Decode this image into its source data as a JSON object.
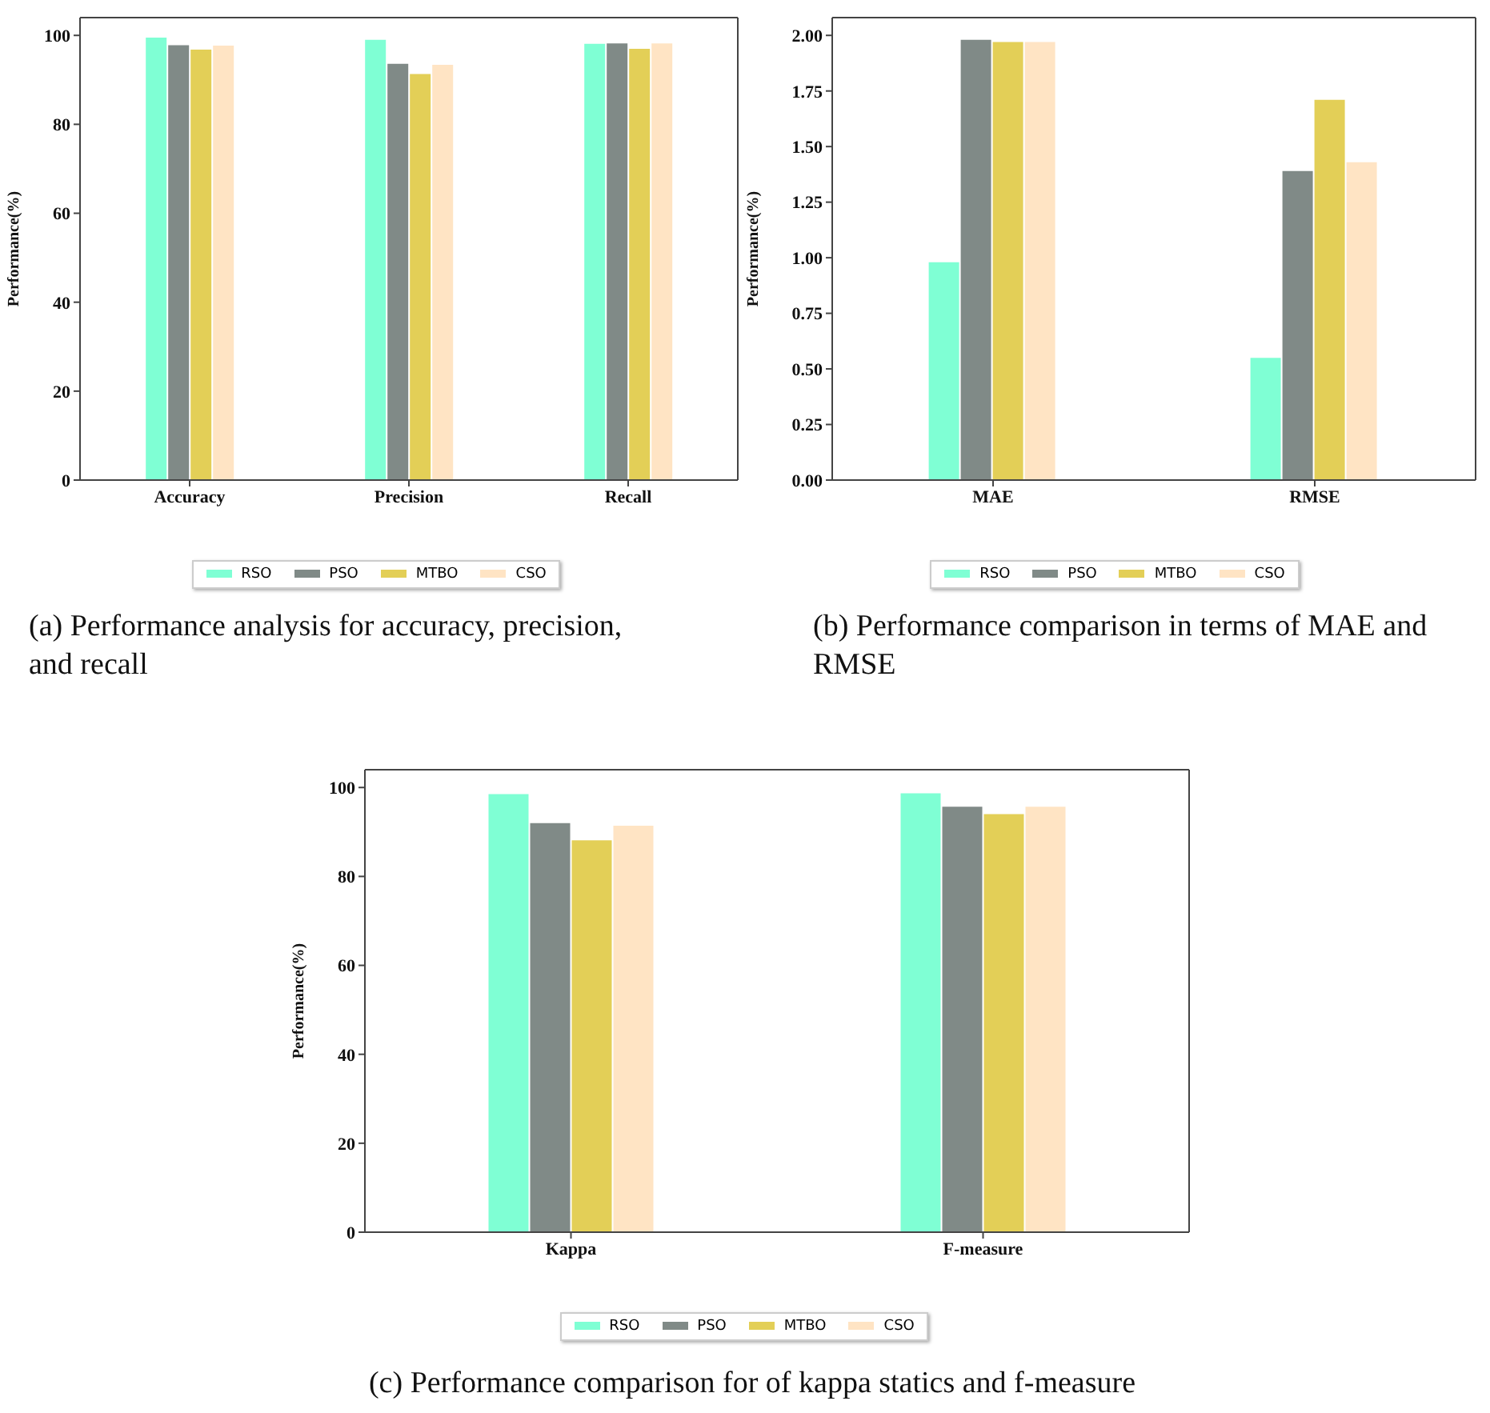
{
  "chart_data": [
    {
      "type": "bar",
      "categories": [
        "Accuracy",
        "Precision",
        "Recall"
      ],
      "ylabel": "Performance(%)",
      "ylim": [
        0,
        104
      ],
      "yticks": [
        0,
        20,
        40,
        60,
        80,
        100
      ],
      "legend": "bottom",
      "grid": false,
      "series": [
        {
          "name": "RSO",
          "color": "#7fffd4",
          "values": [
            99.5,
            99.0,
            98.1
          ]
        },
        {
          "name": "PSO",
          "color": "#808a87",
          "values": [
            97.8,
            93.6,
            98.2
          ]
        },
        {
          "name": "MTBO",
          "color": "#e3cf57",
          "values": [
            96.8,
            91.3,
            97.0
          ]
        },
        {
          "name": "CSO",
          "color": "#ffe4c4",
          "values": [
            97.7,
            93.4,
            98.2
          ]
        }
      ],
      "annotations": [
        "(a) Performance analysis for accuracy, precision, and recall"
      ]
    },
    {
      "type": "bar",
      "categories": [
        "MAE",
        "RMSE"
      ],
      "ylabel": "Performance(%)",
      "ylim": [
        0,
        2.08
      ],
      "yticks": [
        {
          "value": 0,
          "label": "0.00"
        },
        {
          "value": 0.25,
          "label": "0.25"
        },
        {
          "value": 0.5,
          "label": "0.50"
        },
        {
          "value": 0.75,
          "label": "0.75"
        },
        {
          "value": 1,
          "label": "1.00"
        },
        {
          "value": 1.25,
          "label": "1.25"
        },
        {
          "value": 1.5,
          "label": "1.50"
        },
        {
          "value": 1.75,
          "label": "1.75"
        },
        {
          "value": 2,
          "label": "2.00"
        }
      ],
      "legend": "bottom",
      "grid": false,
      "series": [
        {
          "name": "RSO",
          "color": "#7fffd4",
          "values": [
            0.98,
            0.55
          ]
        },
        {
          "name": "PSO",
          "color": "#808a87",
          "values": [
            1.98,
            1.39
          ]
        },
        {
          "name": "MTBO",
          "color": "#e3cf57",
          "values": [
            1.97,
            1.71
          ]
        },
        {
          "name": "CSO",
          "color": "#ffe4c4",
          "values": [
            1.97,
            1.43
          ]
        }
      ],
      "annotations": [
        "(b) Performance comparison in terms of MAE and RMSE"
      ]
    },
    {
      "type": "bar",
      "categories": [
        "Kappa",
        "F-measure"
      ],
      "ylabel": "Performance(%)",
      "ylim": [
        0,
        104
      ],
      "yticks": [
        0,
        20,
        40,
        60,
        80,
        100
      ],
      "legend": "bottom",
      "grid": false,
      "series": [
        {
          "name": "RSO",
          "color": "#7fffd4",
          "values": [
            98.5,
            98.7
          ]
        },
        {
          "name": "PSO",
          "color": "#808a87",
          "values": [
            92.0,
            95.7
          ]
        },
        {
          "name": "MTBO",
          "color": "#e3cf57",
          "values": [
            88.1,
            94.0
          ]
        },
        {
          "name": "CSO",
          "color": "#ffe4c4",
          "values": [
            91.4,
            95.7
          ]
        }
      ],
      "annotations": [
        "(c) Performance comparison for of kappa statics and f-measure"
      ]
    }
  ]
}
